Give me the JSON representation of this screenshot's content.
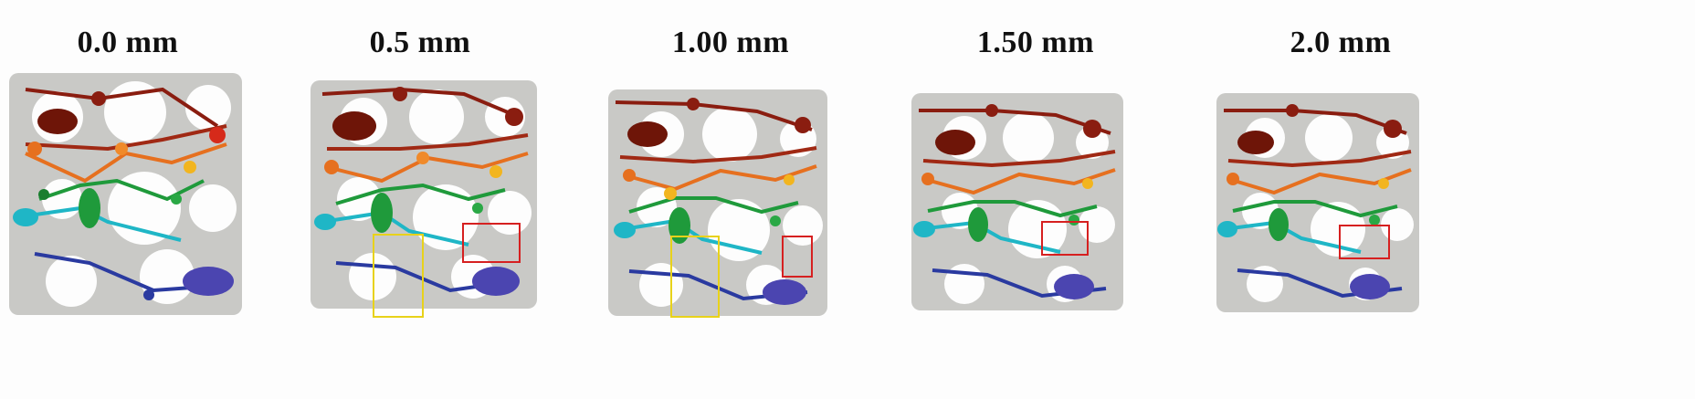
{
  "panels": [
    {
      "title": "0.0 mm"
    },
    {
      "title": "0.5 mm"
    },
    {
      "title": "1.00 mm"
    },
    {
      "title": "1.50 mm"
    },
    {
      "title": "2.0 mm"
    }
  ],
  "colors": {
    "background": "#fdfdfd",
    "bone": "#c9c9c6",
    "highlight_yellow": "#e8d21a",
    "highlight_red": "#d62020",
    "skeleton_top": "#8a1d10",
    "skeleton_orange": "#e6701f",
    "skeleton_green": "#1f9a3b",
    "skeleton_cyan": "#1fb6c6",
    "skeleton_blue": "#2a3aa0"
  }
}
